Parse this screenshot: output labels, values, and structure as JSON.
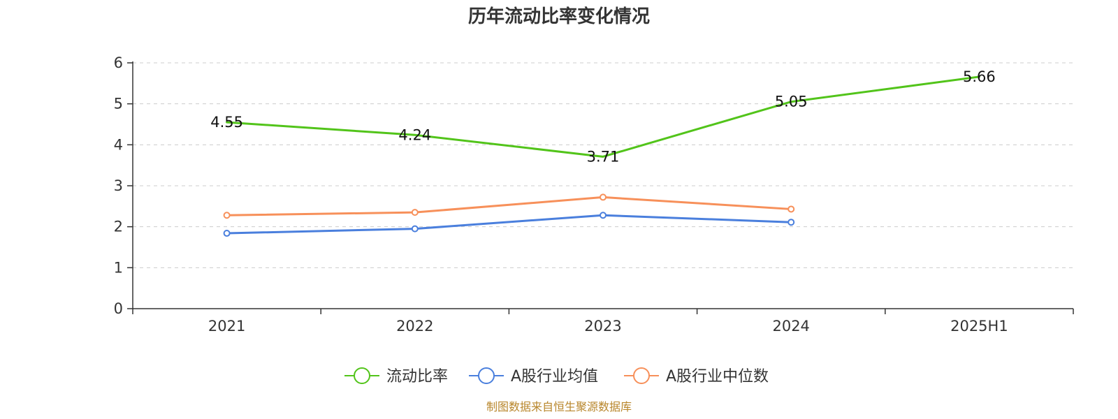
{
  "chart_data": {
    "type": "line",
    "title": "历年流动比率变化情况",
    "categories": [
      "2021",
      "2022",
      "2023",
      "2024",
      "2025H1"
    ],
    "ylim": [
      0,
      6
    ],
    "yticks": [
      0,
      1,
      2,
      3,
      4,
      5,
      6
    ],
    "ytick_labels": [
      "0",
      "1",
      "2",
      "3",
      "4",
      "5",
      "6"
    ],
    "grid": true,
    "legend_position": "bottom-center",
    "series": [
      {
        "name": "流动比率",
        "color": "#52c41a",
        "values": [
          4.55,
          4.24,
          3.71,
          5.05,
          5.66
        ],
        "labels": [
          "4.55",
          "4.24",
          "3.71",
          "5.05",
          "5.66"
        ],
        "show_labels": true,
        "show_markers": false
      },
      {
        "name": "A股行业均值",
        "color": "#4a7fdd",
        "values": [
          1.84,
          1.95,
          2.28,
          2.11,
          null
        ],
        "show_labels": false,
        "show_markers": true
      },
      {
        "name": "A股行业中位数",
        "color": "#f7905a",
        "values": [
          2.28,
          2.35,
          2.72,
          2.43,
          null
        ],
        "show_labels": false,
        "show_markers": true
      }
    ],
    "source": "制图数据来自恒生聚源数据库"
  }
}
